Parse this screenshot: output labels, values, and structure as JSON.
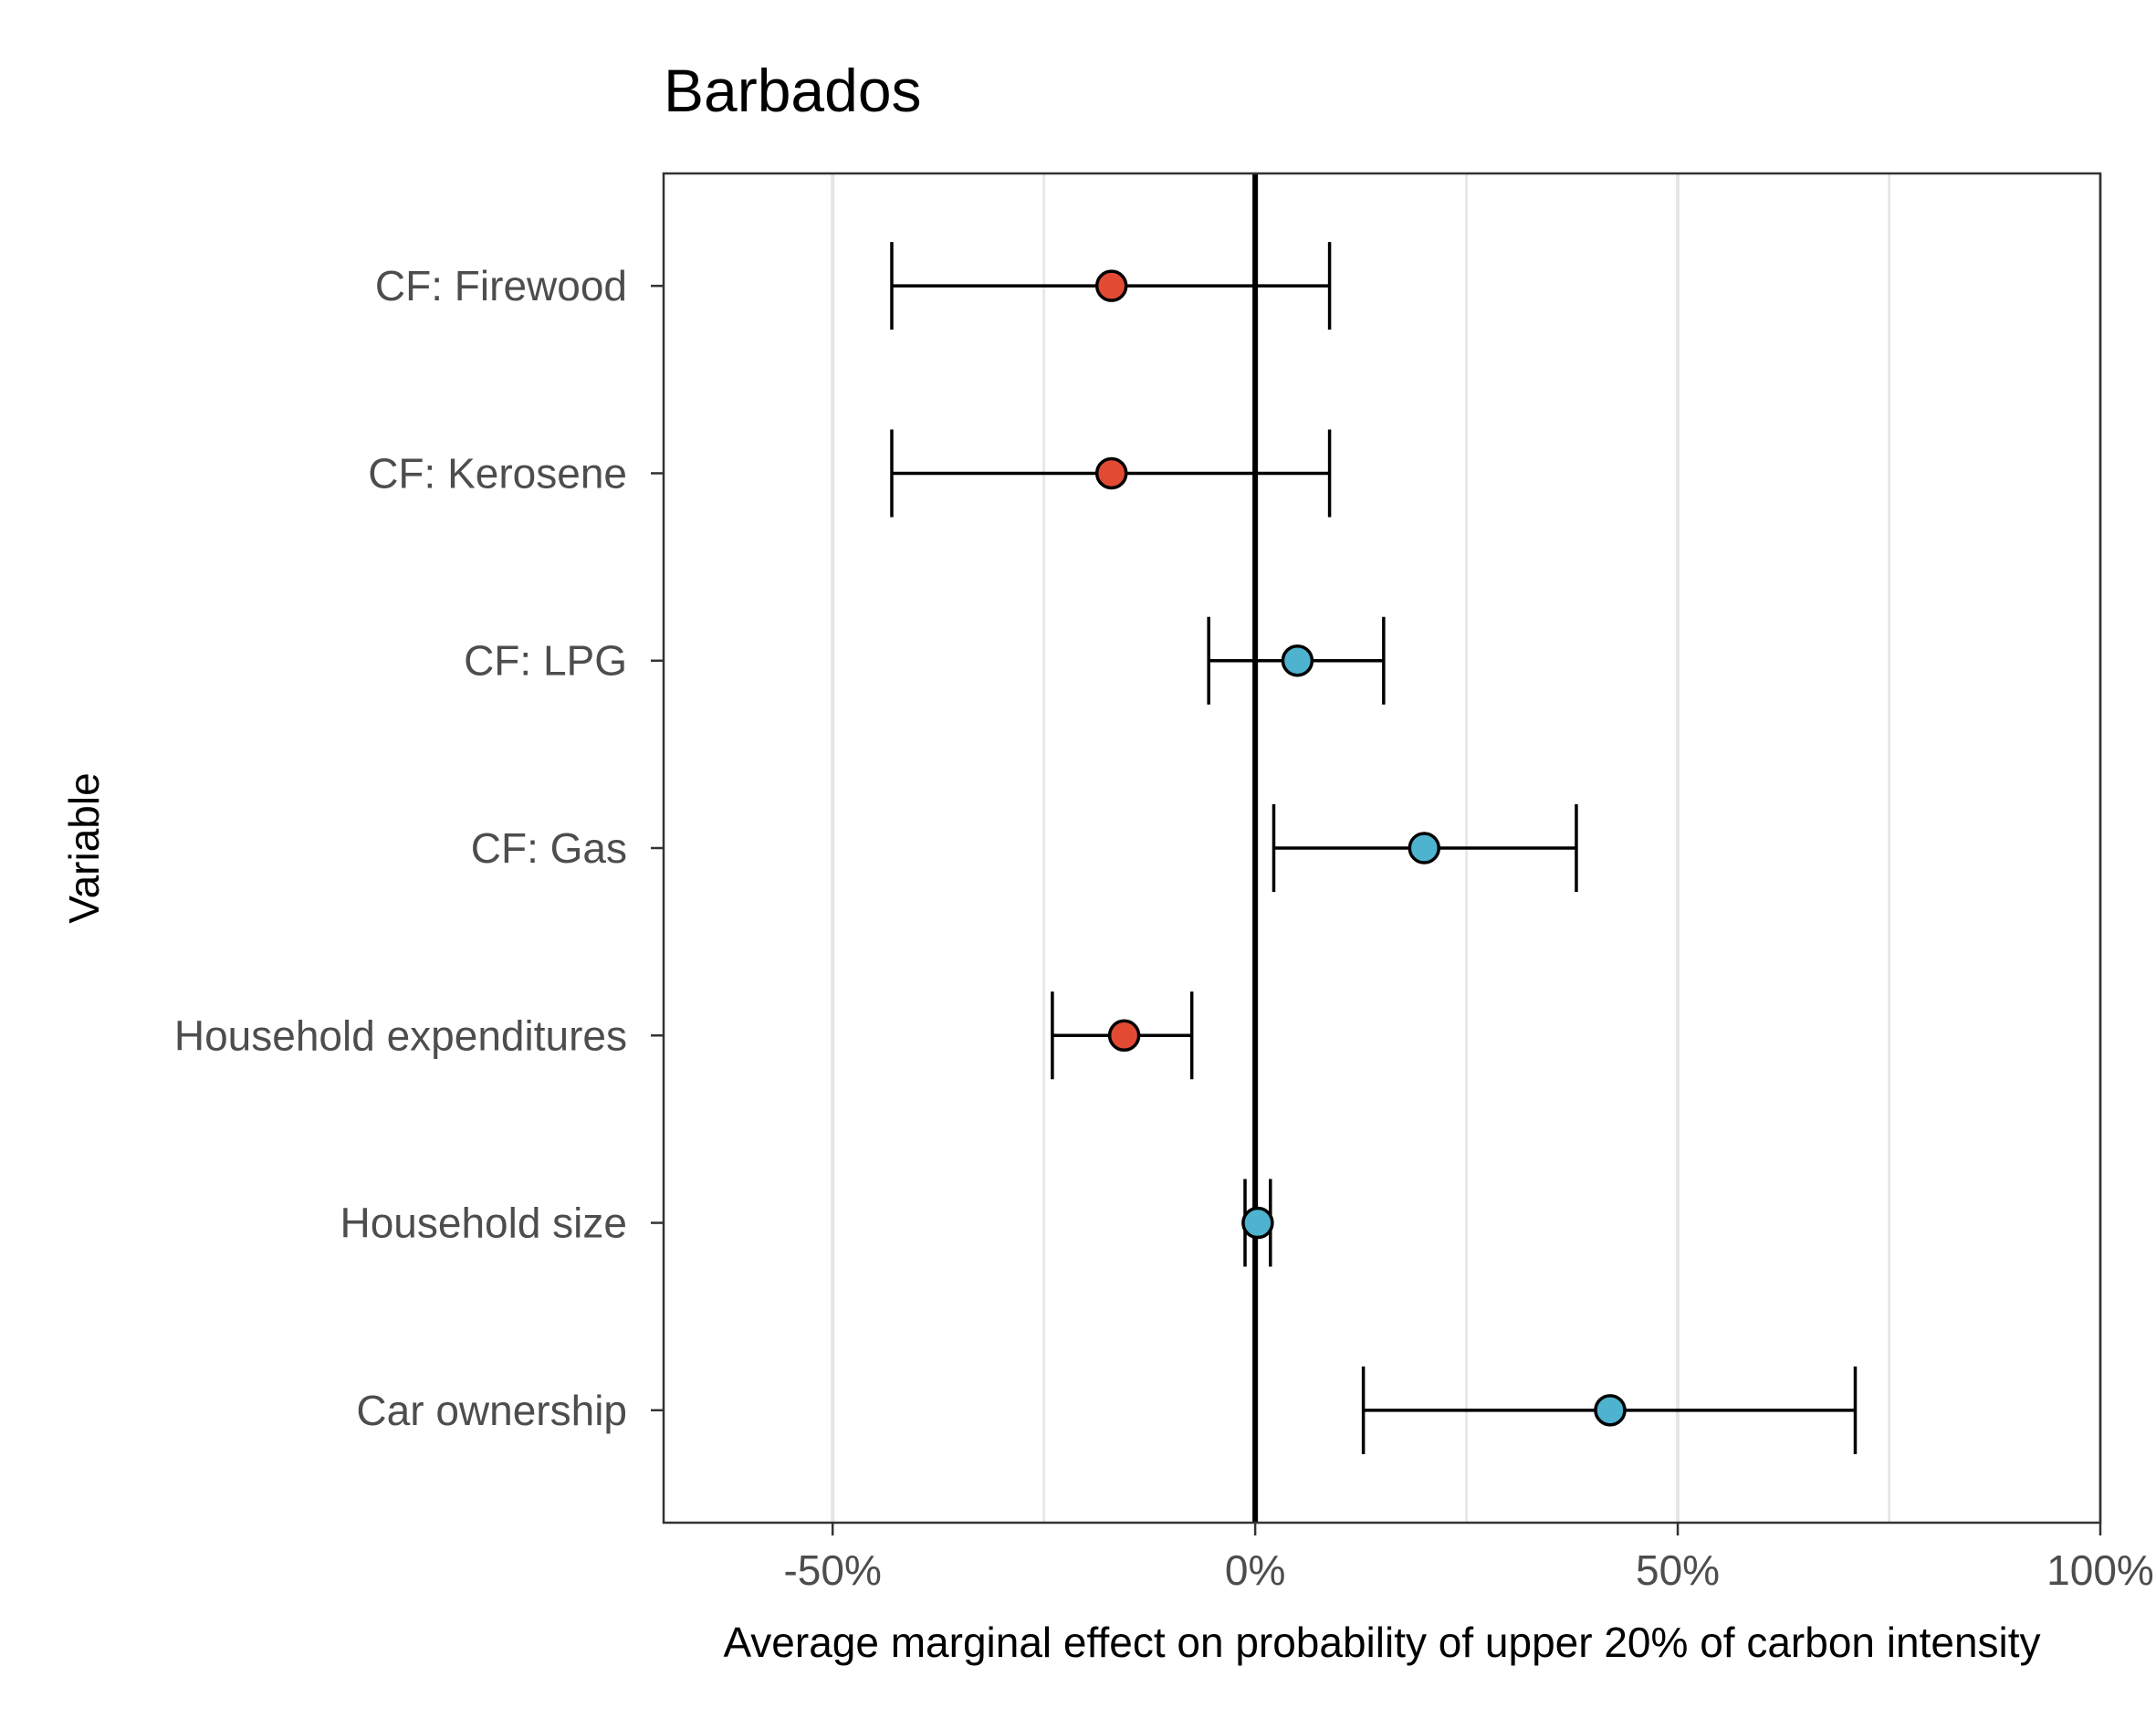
{
  "chart_data": {
    "type": "dot-and-whisker",
    "title": "Barbados",
    "xlabel": "Average marginal effect on probability of upper 20% of carbon intensity",
    "ylabel": "Variable",
    "xlim": [
      -0.7,
      1.0
    ],
    "x_ticks": [
      -0.5,
      0,
      0.5,
      1.0
    ],
    "x_tick_labels": [
      "-50%",
      "0%",
      "50%",
      "100%"
    ],
    "x_minor_gridlines": [
      -0.25,
      0.25,
      0.75
    ],
    "reference_line": 0,
    "grid": "vertical",
    "categories": [
      "CF: Firewood",
      "CF: Kerosene",
      "CF: LPG",
      "CF: Gas",
      "Household expenditures",
      "Household size",
      "Car ownership"
    ],
    "series": [
      {
        "estimates": [
          -0.17,
          -0.17,
          0.05,
          0.2,
          -0.155,
          0.003,
          0.42
        ],
        "ci_low": [
          -0.43,
          -0.43,
          -0.055,
          0.022,
          -0.24,
          -0.012,
          0.128
        ],
        "ci_high": [
          0.088,
          0.088,
          0.152,
          0.38,
          -0.075,
          0.018,
          0.71
        ]
      }
    ],
    "point_colors": {
      "negative": "#E24A33",
      "positive": "#4DB3CF"
    }
  }
}
